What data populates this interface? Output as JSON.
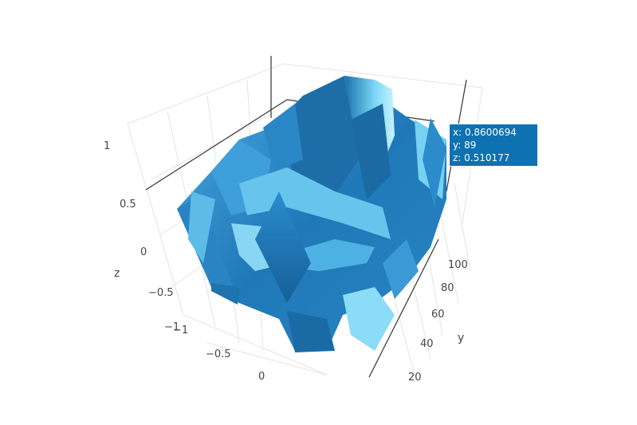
{
  "chart_data": {
    "type": "surface",
    "x_ticks": [
      "−1",
      "−0.5",
      "0"
    ],
    "y_ticks": [
      "20",
      "40",
      "60",
      "80",
      "100"
    ],
    "z_ticks": [
      "1",
      "0.5",
      "0",
      "−0.5",
      "−1"
    ],
    "xlabel": "",
    "ylabel": "y",
    "zlabel": "z",
    "surface_color": "#2f8fcf",
    "grid": true,
    "hover": {
      "x": "x: 0.8600694",
      "y": "y: 89",
      "z": "z: 0.510177"
    }
  }
}
